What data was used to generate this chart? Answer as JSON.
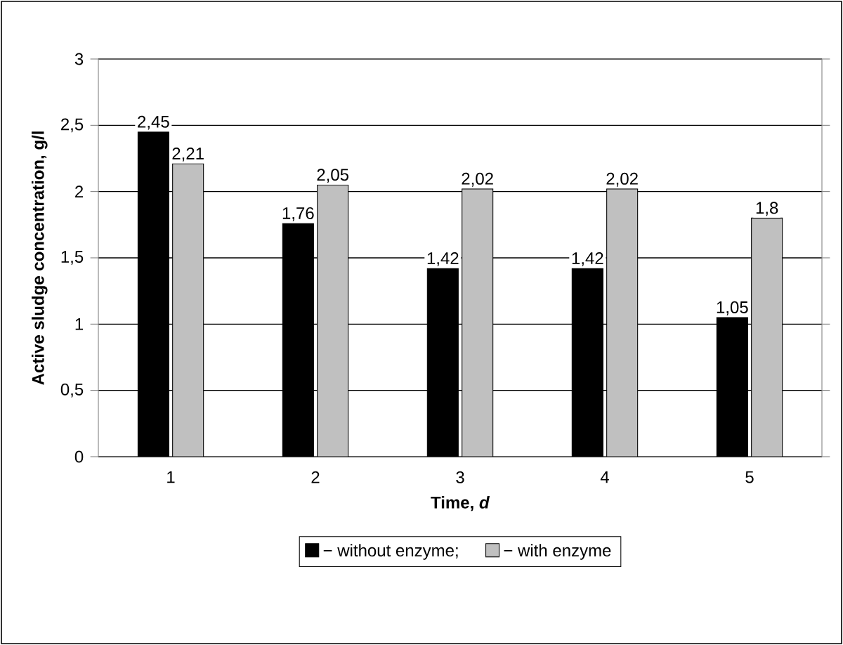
{
  "chart_data": {
    "type": "bar",
    "xlabel": "Time, *d*",
    "ylabel": "Active sludge concentration, g/l",
    "categories": [
      "1",
      "2",
      "3",
      "4",
      "5"
    ],
    "series": [
      {
        "name": "− without enzyme;",
        "color": "#000000",
        "values": [
          2.45,
          1.76,
          1.42,
          1.42,
          1.05
        ],
        "value_labels": [
          "2,45",
          "1,76",
          "1,42",
          "1,42",
          "1,05"
        ]
      },
      {
        "name": "− with enzyme",
        "color": "#c0c0c0",
        "values": [
          2.21,
          2.05,
          2.02,
          2.02,
          1.8
        ],
        "value_labels": [
          "2,21",
          "2,05",
          "2,02",
          "2,02",
          "1,8"
        ]
      }
    ],
    "ylim": [
      0,
      3
    ],
    "yticks": [
      0,
      {
        "value": 0.5,
        "label": "0,5"
      },
      1,
      {
        "value": 1.5,
        "label": "1,5"
      },
      2,
      {
        "value": 2.5,
        "label": "2,5"
      },
      3
    ],
    "grid": "y",
    "legend": "bottom"
  }
}
